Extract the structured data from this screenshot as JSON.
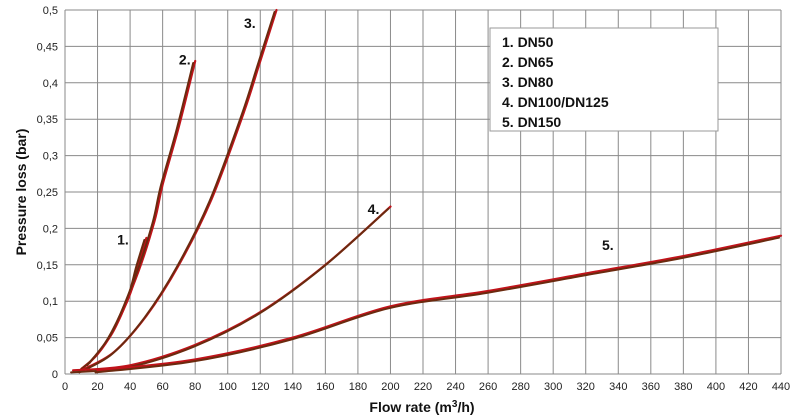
{
  "chart_data": {
    "type": "line",
    "title": "",
    "xlabel": "Flow rate (m",
    "xlabel_sup": "3",
    "xlabel_end": "/h)",
    "ylabel": "Pressure loss (bar)",
    "xlim": [
      0,
      440
    ],
    "ylim": [
      0,
      0.5
    ],
    "x_ticks": [
      "0",
      "20",
      "40",
      "60",
      "80",
      "100",
      "120",
      "140",
      "160",
      "180",
      "200",
      "220",
      "240",
      "260",
      "280",
      "300",
      "320",
      "340",
      "360",
      "380",
      "400",
      "420",
      "440"
    ],
    "y_ticks": [
      "0",
      "0,05",
      "0,1",
      "0,15",
      "0,2",
      "0,25",
      "0,3",
      "0,35",
      "0,4",
      "0,45",
      "0,5"
    ],
    "grid": true,
    "legend_position": "top-right",
    "legend": [
      "1. DN50",
      "2. DN65",
      "3. DN80",
      "4. DN100/DN125",
      "5. DN150"
    ],
    "colors": {
      "red": "#c0131a",
      "dark": "#6b2a0f"
    },
    "series": [
      {
        "label": "1.",
        "label_at": [
          32,
          0.178
        ],
        "x": [
          10,
          20,
          30,
          40,
          45,
          50
        ],
        "y": [
          0.007,
          0.027,
          0.061,
          0.11,
          0.15,
          0.187
        ]
      },
      {
        "label": "2.",
        "label_at": [
          70,
          0.425
        ],
        "x": [
          15,
          30,
          45,
          55,
          60,
          70,
          80
        ],
        "y": [
          0.015,
          0.06,
          0.14,
          0.21,
          0.26,
          0.34,
          0.43
        ]
      },
      {
        "label": "3.",
        "label_at": [
          110,
          0.475
        ],
        "x": [
          10,
          30,
          50,
          70,
          90,
          110,
          120,
          130
        ],
        "y": [
          0.005,
          0.03,
          0.08,
          0.15,
          0.24,
          0.36,
          0.43,
          0.5
        ]
      },
      {
        "label": "4.",
        "label_at": [
          186,
          0.22
        ],
        "x": [
          5,
          40,
          80,
          120,
          160,
          200
        ],
        "y": [
          0.005,
          0.012,
          0.04,
          0.085,
          0.15,
          0.23
        ]
      },
      {
        "label": "5.",
        "label_at": [
          330,
          0.17
        ],
        "x": [
          20,
          80,
          140,
          200,
          260,
          320,
          380,
          440
        ],
        "y": [
          0.005,
          0.02,
          0.05,
          0.093,
          0.114,
          0.138,
          0.162,
          0.19
        ]
      }
    ]
  }
}
